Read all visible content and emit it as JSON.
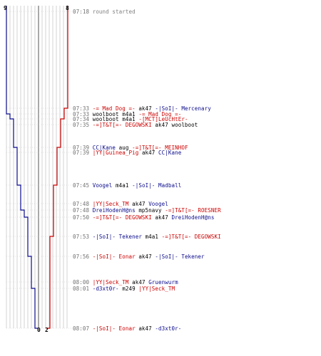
{
  "colors": {
    "red_team": "#cc0000",
    "blue_team": "#0a0a8c",
    "timestamp": "#707070",
    "grid": "#c8c8c8",
    "grid_dark": "#505050"
  },
  "counters": {
    "blue_start": "9",
    "red_start": "8",
    "blue_end": "0",
    "red_end": "2"
  },
  "chart_data": {
    "type": "line",
    "x_label": "",
    "y_label": "",
    "series": [
      {
        "color": "#0a0a8c",
        "values": [
          9,
          9,
          8,
          7,
          7,
          6,
          6,
          5,
          5,
          4,
          3,
          3,
          2,
          2,
          1,
          0,
          0
        ]
      },
      {
        "color": "#cc0000",
        "values": [
          8,
          7,
          7,
          6,
          6,
          5,
          5,
          4,
          4,
          4,
          4,
          3,
          3,
          3,
          3,
          3,
          2
        ]
      }
    ]
  },
  "events": [
    {
      "time": "07:18",
      "parts": [
        {
          "c": "gray",
          "t": "round started"
        }
      ]
    },
    {
      "time": "07:33",
      "parts": [
        {
          "c": "red",
          "t": "-= Mad Dog =-"
        },
        {
          "c": "plain",
          "t": " ak47 "
        },
        {
          "c": "blue",
          "t": "-|SoI|- Mercenary"
        }
      ]
    },
    {
      "time": "07:33",
      "parts": [
        {
          "c": "plain",
          "t": "woolboot m4a1 "
        },
        {
          "c": "red",
          "t": "-= Mad Dog =-"
        }
      ]
    },
    {
      "time": "07:34",
      "parts": [
        {
          "c": "plain",
          "t": "woolboot m4a1 "
        },
        {
          "c": "red",
          "t": "-[MCT]LeUcHtEr-"
        }
      ]
    },
    {
      "time": "07:35",
      "parts": [
        {
          "c": "red",
          "t": "-=]T&T[=- DEGOWSKI"
        },
        {
          "c": "plain",
          "t": " ak47 woolboot"
        }
      ]
    },
    {
      "time": "07:39",
      "parts": [
        {
          "c": "blue",
          "t": "CC|Kane"
        },
        {
          "c": "plain",
          "t": " aug "
        },
        {
          "c": "red",
          "t": "-=]T&T[=- MEINHOF"
        }
      ]
    },
    {
      "time": "07:39",
      "parts": [
        {
          "c": "red",
          "t": "|YY|Guinea_Pig"
        },
        {
          "c": "plain",
          "t": " ak47 "
        },
        {
          "c": "blue",
          "t": "CC|Kane"
        }
      ]
    },
    {
      "time": "07:45",
      "parts": [
        {
          "c": "blue",
          "t": "Voogel"
        },
        {
          "c": "plain",
          "t": " m4a1 "
        },
        {
          "c": "blue",
          "t": "-|SoI|- Madball"
        }
      ]
    },
    {
      "time": "07:48",
      "parts": [
        {
          "c": "red",
          "t": "|YY|Seck_TM"
        },
        {
          "c": "plain",
          "t": " ak47 "
        },
        {
          "c": "blue",
          "t": "Voogel"
        }
      ]
    },
    {
      "time": "07:48",
      "parts": [
        {
          "c": "blue",
          "t": "DreiHodenH@ns"
        },
        {
          "c": "plain",
          "t": " mp5navy "
        },
        {
          "c": "red",
          "t": "-=]T&T[=- ROESNER"
        }
      ]
    },
    {
      "time": "07:50",
      "parts": [
        {
          "c": "red",
          "t": "-=]T&T[=- DEGOWSKI"
        },
        {
          "c": "plain",
          "t": " ak47 "
        },
        {
          "c": "blue",
          "t": "DreiHodenH@ns"
        }
      ]
    },
    {
      "time": "07:53",
      "parts": [
        {
          "c": "blue",
          "t": "-|SoI|- Tekener"
        },
        {
          "c": "plain",
          "t": " m4a1 "
        },
        {
          "c": "red",
          "t": "-=]T&T[=- DEGOWSKI"
        }
      ]
    },
    {
      "time": "07:56",
      "parts": [
        {
          "c": "red",
          "t": "-|SoI|- Eonar"
        },
        {
          "c": "plain",
          "t": " ak47 "
        },
        {
          "c": "blue",
          "t": "-|SoI|- Tekener"
        }
      ]
    },
    {
      "time": "08:00",
      "parts": [
        {
          "c": "red",
          "t": "|YY|Seck_TM"
        },
        {
          "c": "plain",
          "t": " ak47 "
        },
        {
          "c": "blue",
          "t": "Gruenwurm"
        }
      ]
    },
    {
      "time": "08:01",
      "parts": [
        {
          "c": "blue",
          "t": "-d3xt0r-"
        },
        {
          "c": "plain",
          "t": " m249 "
        },
        {
          "c": "red",
          "t": "|YY|Seck_TM"
        }
      ]
    },
    {
      "time": "08:07",
      "parts": [
        {
          "c": "red",
          "t": "-|SoI|- Eonar"
        },
        {
          "c": "plain",
          "t": " ak47 "
        },
        {
          "c": "blue",
          "t": "-d3xt0r-"
        }
      ]
    }
  ]
}
